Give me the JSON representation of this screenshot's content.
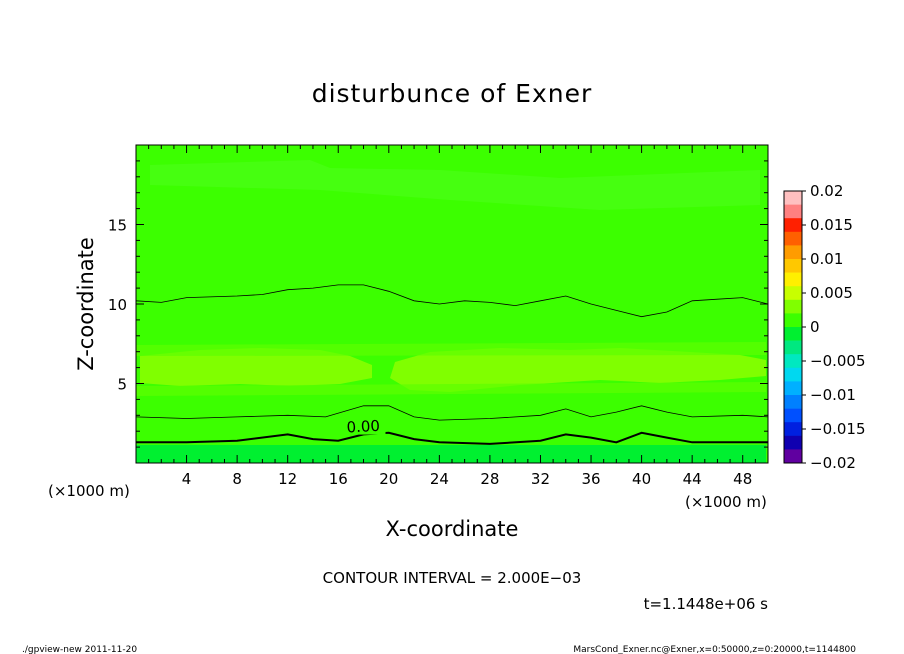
{
  "chart_data": {
    "type": "heatmap",
    "title": "disturbunce of Exner",
    "xlabel": "X-coordinate",
    "ylabel": "Z-coordinate",
    "x_unit_left": "(×1000 m)",
    "x_unit_right": "(×1000 m)",
    "xlim": [
      0,
      50
    ],
    "ylim": [
      0,
      20
    ],
    "x_ticks": [
      4,
      8,
      12,
      16,
      20,
      24,
      28,
      32,
      36,
      40,
      44,
      48
    ],
    "y_ticks": [
      5,
      10,
      15
    ],
    "colorbar": {
      "range": [
        -0.02,
        0.02
      ],
      "tick_values": [
        0.02,
        0.015,
        0.01,
        0.005,
        0,
        -0.005,
        -0.01,
        -0.015,
        -0.02
      ],
      "tick_labels": [
        "0.02",
        "0.015",
        "0.01",
        "0.005",
        "0",
        "−0.005",
        "−0.01",
        "−0.015",
        "−0.02"
      ],
      "colors": [
        "#ffc0c0",
        "#ff8080",
        "#ff2000",
        "#ff6000",
        "#ff9c00",
        "#ffc800",
        "#fff000",
        "#c8ff00",
        "#80ff00",
        "#3cff00",
        "#00f030",
        "#00e880",
        "#00e8c0",
        "#00d8f0",
        "#00b0ff",
        "#0080ff",
        "#0050ff",
        "#0020e0",
        "#1000b0",
        "#6000a0"
      ]
    },
    "contours": [
      {
        "label": "0.00",
        "bold": true,
        "points": [
          [
            0,
            1.3
          ],
          [
            4,
            1.3
          ],
          [
            8,
            1.4
          ],
          [
            12,
            1.8
          ],
          [
            14,
            1.5
          ],
          [
            16,
            1.4
          ],
          [
            18,
            1.8
          ],
          [
            20,
            1.9
          ],
          [
            22,
            1.5
          ],
          [
            24,
            1.3
          ],
          [
            28,
            1.2
          ],
          [
            32,
            1.4
          ],
          [
            34,
            1.8
          ],
          [
            36,
            1.6
          ],
          [
            38,
            1.3
          ],
          [
            40,
            1.9
          ],
          [
            42,
            1.6
          ],
          [
            44,
            1.3
          ],
          [
            48,
            1.3
          ],
          [
            50,
            1.3
          ]
        ]
      },
      {
        "label": "",
        "bold": false,
        "points": [
          [
            0,
            2.9
          ],
          [
            4,
            2.8
          ],
          [
            8,
            2.9
          ],
          [
            12,
            3.0
          ],
          [
            15,
            2.9
          ],
          [
            18,
            3.6
          ],
          [
            20,
            3.6
          ],
          [
            22,
            2.9
          ],
          [
            24,
            2.7
          ],
          [
            28,
            2.8
          ],
          [
            32,
            3.0
          ],
          [
            34,
            3.4
          ],
          [
            36,
            2.9
          ],
          [
            38,
            3.2
          ],
          [
            40,
            3.6
          ],
          [
            42,
            3.2
          ],
          [
            44,
            2.9
          ],
          [
            48,
            3.0
          ],
          [
            50,
            2.9
          ]
        ]
      },
      {
        "label": "",
        "bold": false,
        "points": [
          [
            0,
            10.2
          ],
          [
            2,
            10.1
          ],
          [
            4,
            10.4
          ],
          [
            8,
            10.5
          ],
          [
            10,
            10.6
          ],
          [
            12,
            10.9
          ],
          [
            14,
            11.0
          ],
          [
            16,
            11.2
          ],
          [
            18,
            11.2
          ],
          [
            20,
            10.8
          ],
          [
            22,
            10.2
          ],
          [
            24,
            10.0
          ],
          [
            26,
            10.2
          ],
          [
            28,
            10.1
          ],
          [
            30,
            9.9
          ],
          [
            32,
            10.2
          ],
          [
            34,
            10.5
          ],
          [
            36,
            10.0
          ],
          [
            38,
            9.6
          ],
          [
            40,
            9.2
          ],
          [
            42,
            9.5
          ],
          [
            44,
            10.2
          ],
          [
            46,
            10.3
          ],
          [
            48,
            10.4
          ],
          [
            50,
            10.0
          ]
        ]
      }
    ],
    "annotations": [
      "CONTOUR INTERVAL = 2.000E−03",
      "t=1.1448e+06 s"
    ]
  },
  "footer": {
    "left": "./gpview-new   2011-11-20",
    "right": "MarsCond_Exner.nc@Exner,x=0:50000,z=0:20000,t=1144800"
  }
}
